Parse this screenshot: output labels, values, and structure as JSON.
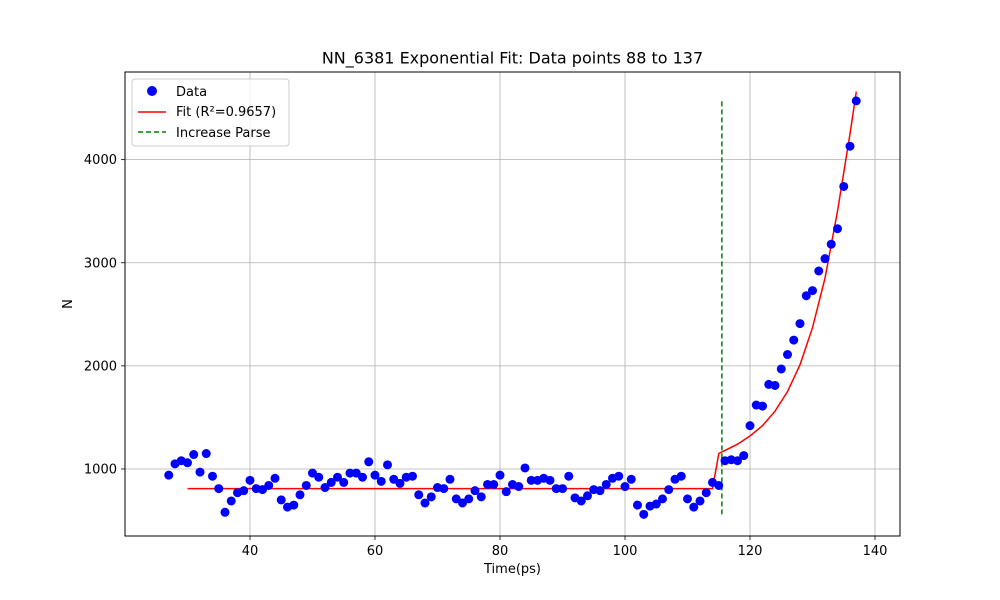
{
  "chart_data": {
    "type": "scatter",
    "title": "NN_6381 Exponential Fit: Data points 88 to 137",
    "xlabel": "Time(ps)",
    "ylabel": "N",
    "xlim": [
      20,
      144
    ],
    "ylim": [
      350,
      4850
    ],
    "xticks": [
      40,
      60,
      80,
      100,
      120,
      140
    ],
    "yticks": [
      1000,
      2000,
      3000,
      4000
    ],
    "grid": true,
    "legend_position": "top-left",
    "series": [
      {
        "name": "Data",
        "kind": "scatter",
        "color": "#0000ff",
        "x": [
          27,
          28,
          29,
          30,
          31,
          32,
          33,
          34,
          35,
          36,
          37,
          38,
          39,
          40,
          41,
          42,
          43,
          44,
          45,
          46,
          47,
          48,
          49,
          50,
          51,
          52,
          53,
          54,
          55,
          56,
          57,
          58,
          59,
          60,
          61,
          62,
          63,
          64,
          65,
          66,
          67,
          68,
          69,
          70,
          71,
          72,
          73,
          74,
          75,
          76,
          77,
          78,
          79,
          80,
          81,
          82,
          83,
          84,
          85,
          86,
          87,
          88,
          89,
          90,
          91,
          92,
          93,
          94,
          95,
          96,
          97,
          98,
          99,
          100,
          101,
          102,
          103,
          104,
          105,
          106,
          107,
          108,
          109,
          110,
          111,
          112,
          113,
          114,
          115,
          116,
          117,
          118,
          119,
          120,
          121,
          122,
          123,
          124,
          125,
          126,
          127,
          128,
          129,
          130,
          131,
          132,
          133,
          134,
          135,
          136,
          137
        ],
        "y": [
          940,
          1050,
          1080,
          1060,
          1140,
          970,
          1150,
          930,
          810,
          580,
          690,
          770,
          790,
          890,
          810,
          800,
          840,
          910,
          700,
          630,
          650,
          750,
          840,
          960,
          920,
          820,
          870,
          920,
          870,
          960,
          960,
          920,
          1070,
          940,
          880,
          1040,
          900,
          860,
          920,
          930,
          750,
          670,
          730,
          820,
          810,
          900,
          710,
          670,
          710,
          790,
          730,
          850,
          850,
          940,
          780,
          850,
          830,
          1010,
          890,
          890,
          910,
          890,
          810,
          810,
          930,
          720,
          690,
          740,
          800,
          790,
          850,
          910,
          930,
          830,
          900,
          650,
          560,
          640,
          660,
          710,
          800,
          900,
          930,
          710,
          630,
          690,
          770,
          870,
          840,
          1080,
          1090,
          1080,
          1130,
          1420,
          1620,
          1610,
          1820,
          1810,
          1970,
          2110,
          2250,
          2410,
          2680,
          2730,
          2920,
          3040,
          3180,
          3330,
          3740,
          4130,
          4570
        ]
      },
      {
        "name": "Fit (R²=0.9657)",
        "kind": "line",
        "color": "#ff0000",
        "x": [
          30,
          40,
          50,
          60,
          70,
          80,
          90,
          100,
          110,
          114,
          115,
          116,
          118,
          120,
          122,
          124,
          126,
          128,
          130,
          132,
          134,
          136,
          137
        ],
        "y": [
          810,
          810,
          810,
          810,
          810,
          810,
          810,
          810,
          810,
          810,
          1150,
          1180,
          1240,
          1320,
          1420,
          1560,
          1750,
          2010,
          2370,
          2850,
          3500,
          4250,
          4660
        ]
      },
      {
        "name": "Increase Parse",
        "kind": "vline",
        "color": "#008000",
        "x": 115.5,
        "y": [
          560,
          4580
        ]
      }
    ]
  }
}
